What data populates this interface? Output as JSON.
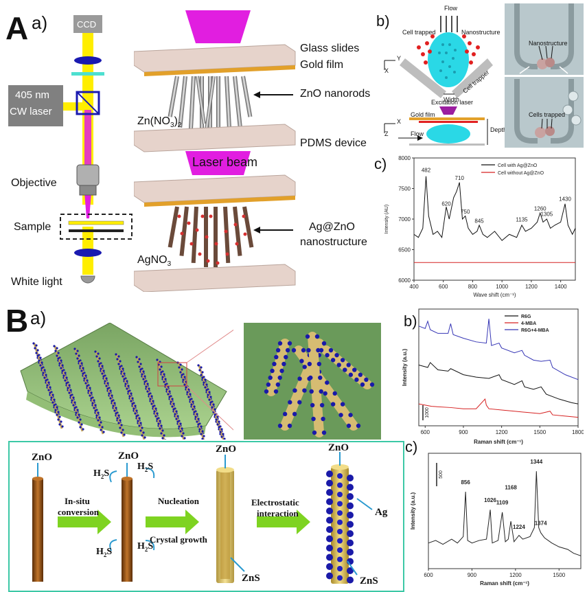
{
  "panelA": {
    "letter": "A",
    "sub_a": "a)",
    "sub_b": "b)",
    "sub_c": "c)",
    "optics": {
      "ccd": "CCD",
      "laser_line1": "405 nm",
      "laser_line2": "CW laser",
      "objective": "Objective",
      "sample": "Sample",
      "white_light": "White light"
    },
    "layers": {
      "glass": "Glass slides",
      "gold": "Gold film",
      "zno": "ZnO nanorods",
      "pdms": "PDMS device",
      "zn_nitrate": "Zn(NO",
      "zn_nitrate_sub3": "3",
      "zn_nitrate_tail": ")",
      "zn_nitrate_sub2": "2",
      "laser_beam": "Laser beam",
      "ag_line1": "Ag@ZnO",
      "ag_line2": "nanostructure",
      "agno3": "AgNO",
      "agno3_sub": "3"
    },
    "trap": {
      "flow": "Flow",
      "cell_trapped": "Cell trapped",
      "nanostructure": "Nanostructure",
      "width": "Width",
      "cell_trapper": "Cell trapper",
      "axis_x": "X",
      "axis_y": "Y",
      "axis_z": "Z",
      "excitation_laser": "Excitation laser",
      "gold_film": "Gold film",
      "flow2": "Flow",
      "depth": "Depth",
      "photo_nanostructure": "Nanostructure",
      "photo_cells_trapped": "Cells trapped"
    }
  },
  "panelB": {
    "letter": "B",
    "sub_a": "a)",
    "sub_b": "b)",
    "sub_c": "c)",
    "flow": {
      "zno1": "ZnO",
      "insitu1": "In-situ",
      "insitu2": "conversion",
      "zno2": "ZnO",
      "h2s_a": "H",
      "h2s_b": "H",
      "h2s_c": "H",
      "h2s_d": "H",
      "h2s_sub": "2",
      "h2s_tail": "S",
      "nucleation": "Nucleation",
      "crystal": "Crystal growth",
      "zno3": "ZnO",
      "zns1": "ZnS",
      "electro1": "Electrostatic",
      "electro2": "interaction",
      "zno4": "ZnO",
      "ag": "Ag",
      "zns2": "ZnS"
    }
  },
  "chart_data": [
    {
      "id": "Ac",
      "type": "line",
      "xlabel": "Wave shift (cm⁻¹)",
      "ylabel": "Intensity (AU)",
      "xlim": [
        400,
        1500
      ],
      "ylim": [
        6000,
        8000
      ],
      "x_ticks": [
        "400",
        "600",
        "800",
        "1000",
        "1200",
        "1400"
      ],
      "y_ticks": [
        "6000",
        "6500",
        "7000",
        "7500",
        "8000"
      ],
      "legend": {
        "placement": "top-right"
      },
      "series": [
        {
          "name": "Cell with Ag@ZnO",
          "color": "#111111",
          "x": [
            400,
            430,
            460,
            482,
            500,
            530,
            560,
            590,
            605,
            620,
            640,
            670,
            690,
            710,
            730,
            750,
            770,
            800,
            830,
            845,
            870,
            900,
            950,
            1000,
            1050,
            1100,
            1135,
            1160,
            1200,
            1240,
            1260,
            1280,
            1305,
            1330,
            1360,
            1400,
            1430,
            1450,
            1480,
            1500
          ],
          "y": [
            6750,
            6700,
            6850,
            7700,
            7050,
            6750,
            6800,
            6700,
            6950,
            7200,
            7000,
            7350,
            7450,
            7600,
            7000,
            7050,
            6850,
            6750,
            6800,
            6900,
            6750,
            6700,
            6800,
            6650,
            6750,
            6700,
            6900,
            6800,
            6850,
            6950,
            7100,
            6950,
            7000,
            6850,
            6900,
            6950,
            7250,
            6900,
            6750,
            6850
          ]
        },
        {
          "name": "Cell without Ag@ZnO",
          "color": "#d62020",
          "x": [
            400,
            1500
          ],
          "y": [
            6290,
            6290
          ]
        }
      ],
      "annotations": [
        "482",
        "620",
        "710",
        "750",
        "845",
        "1135",
        "1260",
        "1305",
        "1430"
      ],
      "annotation_x": [
        482,
        620,
        710,
        750,
        845,
        1135,
        1260,
        1305,
        1430
      ],
      "annotation_y": [
        7770,
        7220,
        7640,
        7090,
        6940,
        6960,
        7140,
        7050,
        7300
      ]
    },
    {
      "id": "Bb",
      "type": "line",
      "xlabel": "Raman shift (cm⁻¹)",
      "ylabel": "Intensity (a.u.)",
      "xlim": [
        550,
        1800
      ],
      "x_ticks": [
        "600",
        "900",
        "1200",
        "1500",
        "1800"
      ],
      "scale_bar": "1000",
      "legend": {
        "placement": "top-right"
      },
      "series": [
        {
          "name": "R6G",
          "color": "#111111",
          "x": [
            550,
            620,
            640,
            700,
            780,
            800,
            900,
            1000,
            1100,
            1180,
            1200,
            1300,
            1360,
            1380,
            1450,
            1510,
            1550,
            1650,
            1750,
            1800
          ],
          "y": [
            3700,
            3600,
            3800,
            3500,
            3450,
            3550,
            3300,
            3200,
            3150,
            3300,
            3100,
            2900,
            3050,
            2800,
            2700,
            2800,
            2500,
            2300,
            2150,
            2100
          ]
        },
        {
          "name": "4-MBA",
          "color": "#d62020",
          "x": [
            550,
            650,
            800,
            900,
            1000,
            1070,
            1080,
            1100,
            1200,
            1300,
            1400,
            1500,
            1580,
            1600,
            1700,
            1800
          ],
          "y": [
            2100,
            2000,
            1950,
            1900,
            1900,
            2300,
            2050,
            1900,
            1850,
            1800,
            1750,
            1700,
            1800,
            1650,
            1600,
            1550
          ]
        },
        {
          "name": "R6G+4-MBA",
          "color": "#3535b5",
          "x": [
            550,
            600,
            620,
            640,
            700,
            780,
            800,
            820,
            900,
            1000,
            1080,
            1100,
            1120,
            1180,
            1200,
            1300,
            1360,
            1380,
            1450,
            1510,
            1580,
            1600,
            1700,
            1800
          ],
          "y": [
            5300,
            5200,
            5500,
            5150,
            5000,
            5000,
            5400,
            4950,
            4800,
            4650,
            4600,
            5600,
            4500,
            4600,
            4400,
            4200,
            4300,
            4100,
            3900,
            3850,
            3900,
            3600,
            3300,
            3100
          ]
        }
      ]
    },
    {
      "id": "Bc",
      "type": "line",
      "xlabel": "Raman shift (cm⁻¹)",
      "ylabel": "Intensity (a.u.)",
      "xlim": [
        600,
        1650
      ],
      "x_ticks": [
        "600",
        "900",
        "1200",
        "1500"
      ],
      "scale_bar": "500",
      "series": [
        {
          "name": "",
          "color": "#222222",
          "x": [
            600,
            650,
            700,
            760,
            800,
            840,
            856,
            870,
            900,
            950,
            1000,
            1026,
            1040,
            1080,
            1109,
            1130,
            1150,
            1168,
            1190,
            1224,
            1250,
            1300,
            1330,
            1344,
            1360,
            1374,
            1400,
            1450,
            1500,
            1560,
            1600,
            1650
          ],
          "y": [
            300,
            320,
            290,
            330,
            300,
            350,
            700,
            320,
            300,
            320,
            330,
            560,
            300,
            320,
            540,
            310,
            330,
            470,
            310,
            360,
            330,
            350,
            420,
            860,
            420,
            380,
            340,
            300,
            270,
            250,
            220,
            200
          ]
        }
      ],
      "annotations": [
        "856",
        "1026",
        "1109",
        "1168",
        "1224",
        "1344",
        "1374"
      ],
      "annotation_x": [
        856,
        1026,
        1109,
        1168,
        1224,
        1344,
        1374
      ],
      "annotation_y": [
        760,
        620,
        600,
        720,
        410,
        920,
        440
      ]
    }
  ],
  "colors": {
    "magenta": "#e11ee0",
    "yellow": "#ffee00",
    "gold": "#e2a02a",
    "zno_rod": "#8b4a12",
    "zns_shell": "#d8b44a",
    "ag_dot": "#1a1aa8",
    "arrow_green": "#7ed321",
    "teal_frame": "#3cc8a6",
    "cyan_cell": "#2ad8e6"
  }
}
